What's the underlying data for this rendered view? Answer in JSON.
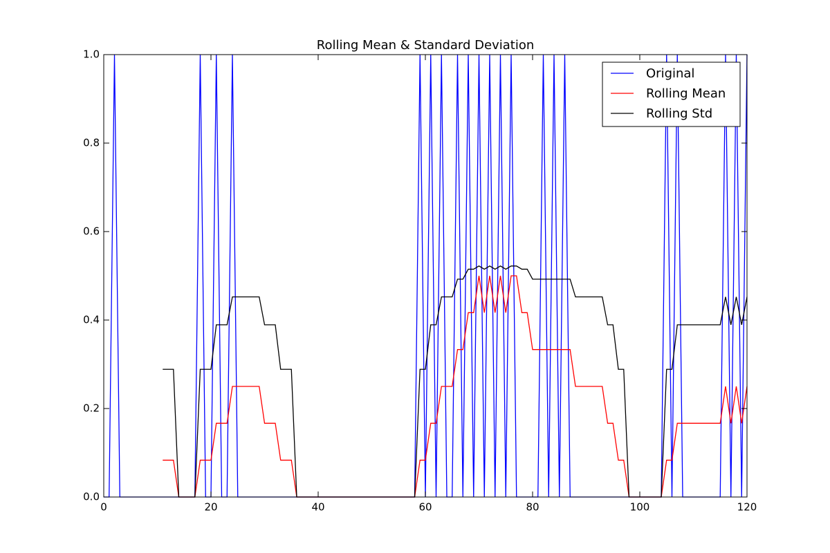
{
  "chart_data": {
    "type": "line",
    "title": "Rolling Mean & Standard Deviation",
    "x": [
      0,
      1,
      2,
      3,
      4,
      5,
      6,
      7,
      8,
      9,
      10,
      11,
      12,
      13,
      14,
      15,
      16,
      17,
      18,
      19,
      20,
      21,
      22,
      23,
      24,
      25,
      26,
      27,
      28,
      29,
      30,
      31,
      32,
      33,
      34,
      35,
      36,
      37,
      38,
      39,
      40,
      41,
      42,
      43,
      44,
      45,
      46,
      47,
      48,
      49,
      50,
      51,
      52,
      53,
      54,
      55,
      56,
      57,
      58,
      59,
      60,
      61,
      62,
      63,
      64,
      65,
      66,
      67,
      68,
      69,
      70,
      71,
      72,
      73,
      74,
      75,
      76,
      77,
      78,
      79,
      80,
      81,
      82,
      83,
      84,
      85,
      86,
      87,
      88,
      89,
      90,
      91,
      92,
      93,
      94,
      95,
      96,
      97,
      98,
      99,
      100,
      101,
      102,
      103,
      104,
      105,
      106,
      107,
      108,
      109,
      110,
      111,
      112,
      113,
      114,
      115,
      116,
      117,
      118,
      119,
      120
    ],
    "series": [
      {
        "name": "Original",
        "color": "#0000ff",
        "values": [
          0,
          0,
          1,
          0,
          0,
          0,
          0,
          0,
          0,
          0,
          0,
          0,
          0,
          0,
          0,
          0,
          0,
          0,
          1,
          0,
          0,
          1,
          0,
          0,
          1,
          0,
          0,
          0,
          0,
          0,
          0,
          0,
          0,
          0,
          0,
          0,
          0,
          0,
          0,
          0,
          0,
          0,
          0,
          0,
          0,
          0,
          0,
          0,
          0,
          0,
          0,
          0,
          0,
          0,
          0,
          0,
          0,
          0,
          0,
          1,
          0,
          1,
          0,
          1,
          0,
          0,
          1,
          0,
          1,
          0,
          1,
          0,
          1,
          0,
          1,
          0,
          1,
          0,
          0,
          0,
          0,
          0,
          1,
          0,
          1,
          0,
          1,
          0,
          0,
          0,
          0,
          0,
          0,
          0,
          0,
          0,
          0,
          0,
          0,
          0,
          0,
          0,
          0,
          0,
          0,
          1,
          0,
          1,
          0,
          0,
          0,
          0,
          0,
          0,
          0,
          0,
          1,
          0,
          1,
          0,
          1
        ]
      },
      {
        "name": "Rolling Mean",
        "color": "#ff0000",
        "values": [
          null,
          null,
          null,
          null,
          null,
          null,
          null,
          null,
          null,
          null,
          null,
          0.0833,
          0.0833,
          0.0833,
          0,
          0,
          0,
          0,
          0.0833,
          0.0833,
          0.0833,
          0.1667,
          0.1667,
          0.1667,
          0.25,
          0.25,
          0.25,
          0.25,
          0.25,
          0.25,
          0.1667,
          0.1667,
          0.1667,
          0.0833,
          0.0833,
          0.0833,
          0,
          0,
          0,
          0,
          0,
          0,
          0,
          0,
          0,
          0,
          0,
          0,
          0,
          0,
          0,
          0,
          0,
          0,
          0,
          0,
          0,
          0,
          0,
          0.0833,
          0.0833,
          0.1667,
          0.1667,
          0.25,
          0.25,
          0.25,
          0.3333,
          0.3333,
          0.4167,
          0.4167,
          0.5,
          0.4167,
          0.5,
          0.4167,
          0.5,
          0.4167,
          0.5,
          0.5,
          0.4167,
          0.4167,
          0.3333,
          0.3333,
          0.3333,
          0.3333,
          0.3333,
          0.3333,
          0.3333,
          0.3333,
          0.25,
          0.25,
          0.25,
          0.25,
          0.25,
          0.25,
          0.1667,
          0.1667,
          0.0833,
          0.0833,
          0,
          0,
          0,
          0,
          0,
          0,
          0,
          0.0833,
          0.0833,
          0.1667,
          0.1667,
          0.1667,
          0.1667,
          0.1667,
          0.1667,
          0.1667,
          0.1667,
          0.1667,
          0.25,
          0.1667,
          0.25,
          0.1667,
          0.25
        ]
      },
      {
        "name": "Rolling Std",
        "color": "#000000",
        "values": [
          null,
          null,
          null,
          null,
          null,
          null,
          null,
          null,
          null,
          null,
          null,
          0.2887,
          0.2887,
          0.2887,
          0,
          0,
          0,
          0,
          0.2887,
          0.2887,
          0.2887,
          0.3892,
          0.3892,
          0.3892,
          0.4523,
          0.4523,
          0.4523,
          0.4523,
          0.4523,
          0.4523,
          0.3892,
          0.3892,
          0.3892,
          0.2887,
          0.2887,
          0.2887,
          0,
          0,
          0,
          0,
          0,
          0,
          0,
          0,
          0,
          0,
          0,
          0,
          0,
          0,
          0,
          0,
          0,
          0,
          0,
          0,
          0,
          0,
          0,
          0.2887,
          0.2887,
          0.3892,
          0.3892,
          0.4523,
          0.4523,
          0.4523,
          0.4924,
          0.4924,
          0.5149,
          0.5149,
          0.5222,
          0.5149,
          0.5222,
          0.5149,
          0.5222,
          0.5149,
          0.5222,
          0.5222,
          0.5149,
          0.5149,
          0.4924,
          0.4924,
          0.4924,
          0.4924,
          0.4924,
          0.4924,
          0.4924,
          0.4924,
          0.4523,
          0.4523,
          0.4523,
          0.4523,
          0.4523,
          0.4523,
          0.3892,
          0.3892,
          0.2887,
          0.2887,
          0,
          0,
          0,
          0,
          0,
          0,
          0,
          0.2887,
          0.2887,
          0.3892,
          0.3892,
          0.3892,
          0.3892,
          0.3892,
          0.3892,
          0.3892,
          0.3892,
          0.3892,
          0.4523,
          0.3892,
          0.4523,
          0.3892,
          0.4523
        ]
      }
    ],
    "xlim": [
      0,
      120
    ],
    "xticks": [
      0,
      20,
      40,
      60,
      80,
      100,
      120
    ],
    "ylim": [
      0,
      1
    ],
    "yticks": [
      {
        "value": 0,
        "label": "0.0"
      },
      0.2,
      0.4,
      0.6,
      0.8,
      {
        "value": 1,
        "label": "1.0"
      }
    ],
    "grid": false,
    "legend": "upper right"
  }
}
